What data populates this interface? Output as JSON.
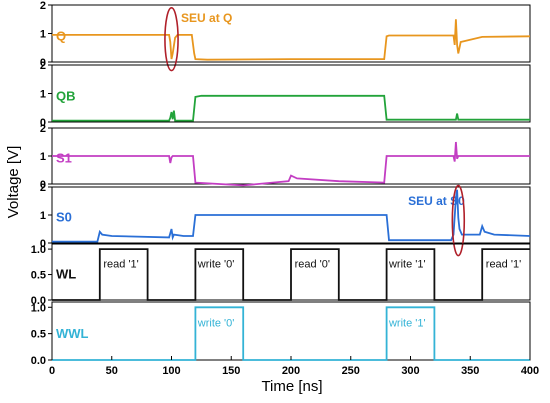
{
  "chart_data": {
    "type": "line",
    "xlabel": "Time [ns]",
    "ylabel": "Voltage [V]",
    "xlim": [
      0,
      400
    ],
    "xticks": [
      0,
      50,
      100,
      150,
      200,
      250,
      300,
      350,
      400
    ],
    "panels": [
      {
        "name": "Q",
        "color": "#e8961e",
        "ylim": [
          0,
          2
        ],
        "yticks": [
          "0",
          "1",
          "2"
        ],
        "points": [
          [
            0,
            0.95
          ],
          [
            98,
            0.95
          ],
          [
            99,
            0.7
          ],
          [
            100,
            0.1
          ],
          [
            101,
            0.3
          ],
          [
            103,
            0.85
          ],
          [
            105,
            0.95
          ],
          [
            117,
            0.95
          ],
          [
            119,
            0.3
          ],
          [
            120,
            0.1
          ],
          [
            130,
            0.08
          ],
          [
            200,
            0.1
          ],
          [
            278,
            0.1
          ],
          [
            280,
            0.9
          ],
          [
            282,
            0.93
          ],
          [
            336,
            0.93
          ],
          [
            337,
            0.6
          ],
          [
            338,
            1.5
          ],
          [
            339,
            0.6
          ],
          [
            340,
            0.3
          ],
          [
            342,
            0.7
          ],
          [
            360,
            0.88
          ],
          [
            400,
            0.9
          ]
        ],
        "annotations": [
          {
            "text": "SEU at Q",
            "x": 108,
            "y": 1.4
          }
        ],
        "circle": {
          "cx": 100,
          "cy": 0.8,
          "rx": 5.5,
          "ry": 1.1
        }
      },
      {
        "name": "QB",
        "color": "#22a33a",
        "ylim": [
          0,
          2
        ],
        "yticks": [
          "0",
          "1",
          "2"
        ],
        "points": [
          [
            0,
            0.05
          ],
          [
            98,
            0.05
          ],
          [
            99,
            0.15
          ],
          [
            100,
            0.35
          ],
          [
            101,
            0.1
          ],
          [
            102,
            0.4
          ],
          [
            103,
            0.05
          ],
          [
            118,
            0.05
          ],
          [
            120,
            0.88
          ],
          [
            125,
            0.92
          ],
          [
            278,
            0.92
          ],
          [
            280,
            0.08
          ],
          [
            338,
            0.08
          ],
          [
            339,
            0.3
          ],
          [
            340,
            0.08
          ],
          [
            400,
            0.08
          ]
        ]
      },
      {
        "name": "S1",
        "color": "#c33ec3",
        "ylim": [
          0,
          2
        ],
        "yticks": [
          "0",
          "1",
          "2"
        ],
        "points": [
          [
            0,
            1.0
          ],
          [
            98,
            1.0
          ],
          [
            99,
            0.75
          ],
          [
            100,
            0.95
          ],
          [
            101,
            1.0
          ],
          [
            118,
            1.0
          ],
          [
            120,
            0.05
          ],
          [
            160,
            -0.05
          ],
          [
            198,
            0.1
          ],
          [
            200,
            0.3
          ],
          [
            205,
            0.2
          ],
          [
            240,
            0.1
          ],
          [
            278,
            0.05
          ],
          [
            280,
            1.0
          ],
          [
            336,
            1.0
          ],
          [
            337,
            0.8
          ],
          [
            338,
            1.5
          ],
          [
            339,
            0.9
          ],
          [
            340,
            1.0
          ],
          [
            400,
            1.0
          ]
        ]
      },
      {
        "name": "S0",
        "color": "#2a6fd6",
        "ylim": [
          0,
          2
        ],
        "yticks": [
          "0",
          "1",
          "2"
        ],
        "points": [
          [
            0,
            0.05
          ],
          [
            38,
            0.05
          ],
          [
            40,
            0.4
          ],
          [
            42,
            0.3
          ],
          [
            50,
            0.25
          ],
          [
            98,
            0.2
          ],
          [
            99,
            0.35
          ],
          [
            100,
            0.5
          ],
          [
            101,
            0.2
          ],
          [
            102,
            0.3
          ],
          [
            110,
            0.25
          ],
          [
            118,
            0.25
          ],
          [
            120,
            1.0
          ],
          [
            280,
            1.0
          ],
          [
            282,
            0.1
          ],
          [
            334,
            0.1
          ],
          [
            336,
            0.3
          ],
          [
            338,
            1.6
          ],
          [
            339,
            1.9
          ],
          [
            340,
            0.9
          ],
          [
            341,
            0.5
          ],
          [
            343,
            0.3
          ],
          [
            358,
            0.3
          ],
          [
            360,
            0.6
          ],
          [
            362,
            0.4
          ],
          [
            370,
            0.3
          ],
          [
            400,
            0.25
          ]
        ],
        "annotations": [
          {
            "text": "SEU at S0",
            "x": 298,
            "y": 1.35
          }
        ],
        "circle": {
          "cx": 340,
          "cy": 0.8,
          "rx": 5,
          "ry": 1.25
        }
      },
      {
        "name": "WL",
        "color": "#111111",
        "ylim": [
          0,
          1.1
        ],
        "yticks": [
          "0.0",
          "0.5",
          "1.0"
        ],
        "points": [
          [
            0,
            0
          ],
          [
            40,
            0
          ],
          [
            40,
            1
          ],
          [
            80,
            1
          ],
          [
            80,
            0
          ],
          [
            120,
            0
          ],
          [
            120,
            1
          ],
          [
            160,
            1
          ],
          [
            160,
            0
          ],
          [
            200,
            0
          ],
          [
            200,
            1
          ],
          [
            240,
            1
          ],
          [
            240,
            0
          ],
          [
            280,
            0
          ],
          [
            280,
            1
          ],
          [
            320,
            1
          ],
          [
            320,
            0
          ],
          [
            360,
            0
          ],
          [
            360,
            1
          ],
          [
            400,
            1
          ]
        ],
        "pulse_labels": [
          {
            "text": "read '1'",
            "x": 43
          },
          {
            "text": "write '0'",
            "x": 122
          },
          {
            "text": "read '0'",
            "x": 203
          },
          {
            "text": "write '1'",
            "x": 282
          },
          {
            "text": "read '1'",
            "x": 363
          }
        ]
      },
      {
        "name": "WWL",
        "color": "#33b3d6",
        "ylim": [
          0,
          1.1
        ],
        "yticks": [
          "0.0",
          "0.5",
          "1.0"
        ],
        "points": [
          [
            0,
            0
          ],
          [
            120,
            0
          ],
          [
            120,
            1
          ],
          [
            160,
            1
          ],
          [
            160,
            0
          ],
          [
            280,
            0
          ],
          [
            280,
            1
          ],
          [
            320,
            1
          ],
          [
            320,
            0
          ],
          [
            400,
            0
          ]
        ],
        "pulse_labels": [
          {
            "text": "write '0'",
            "x": 122
          },
          {
            "text": "write '1'",
            "x": 282
          }
        ]
      }
    ]
  }
}
